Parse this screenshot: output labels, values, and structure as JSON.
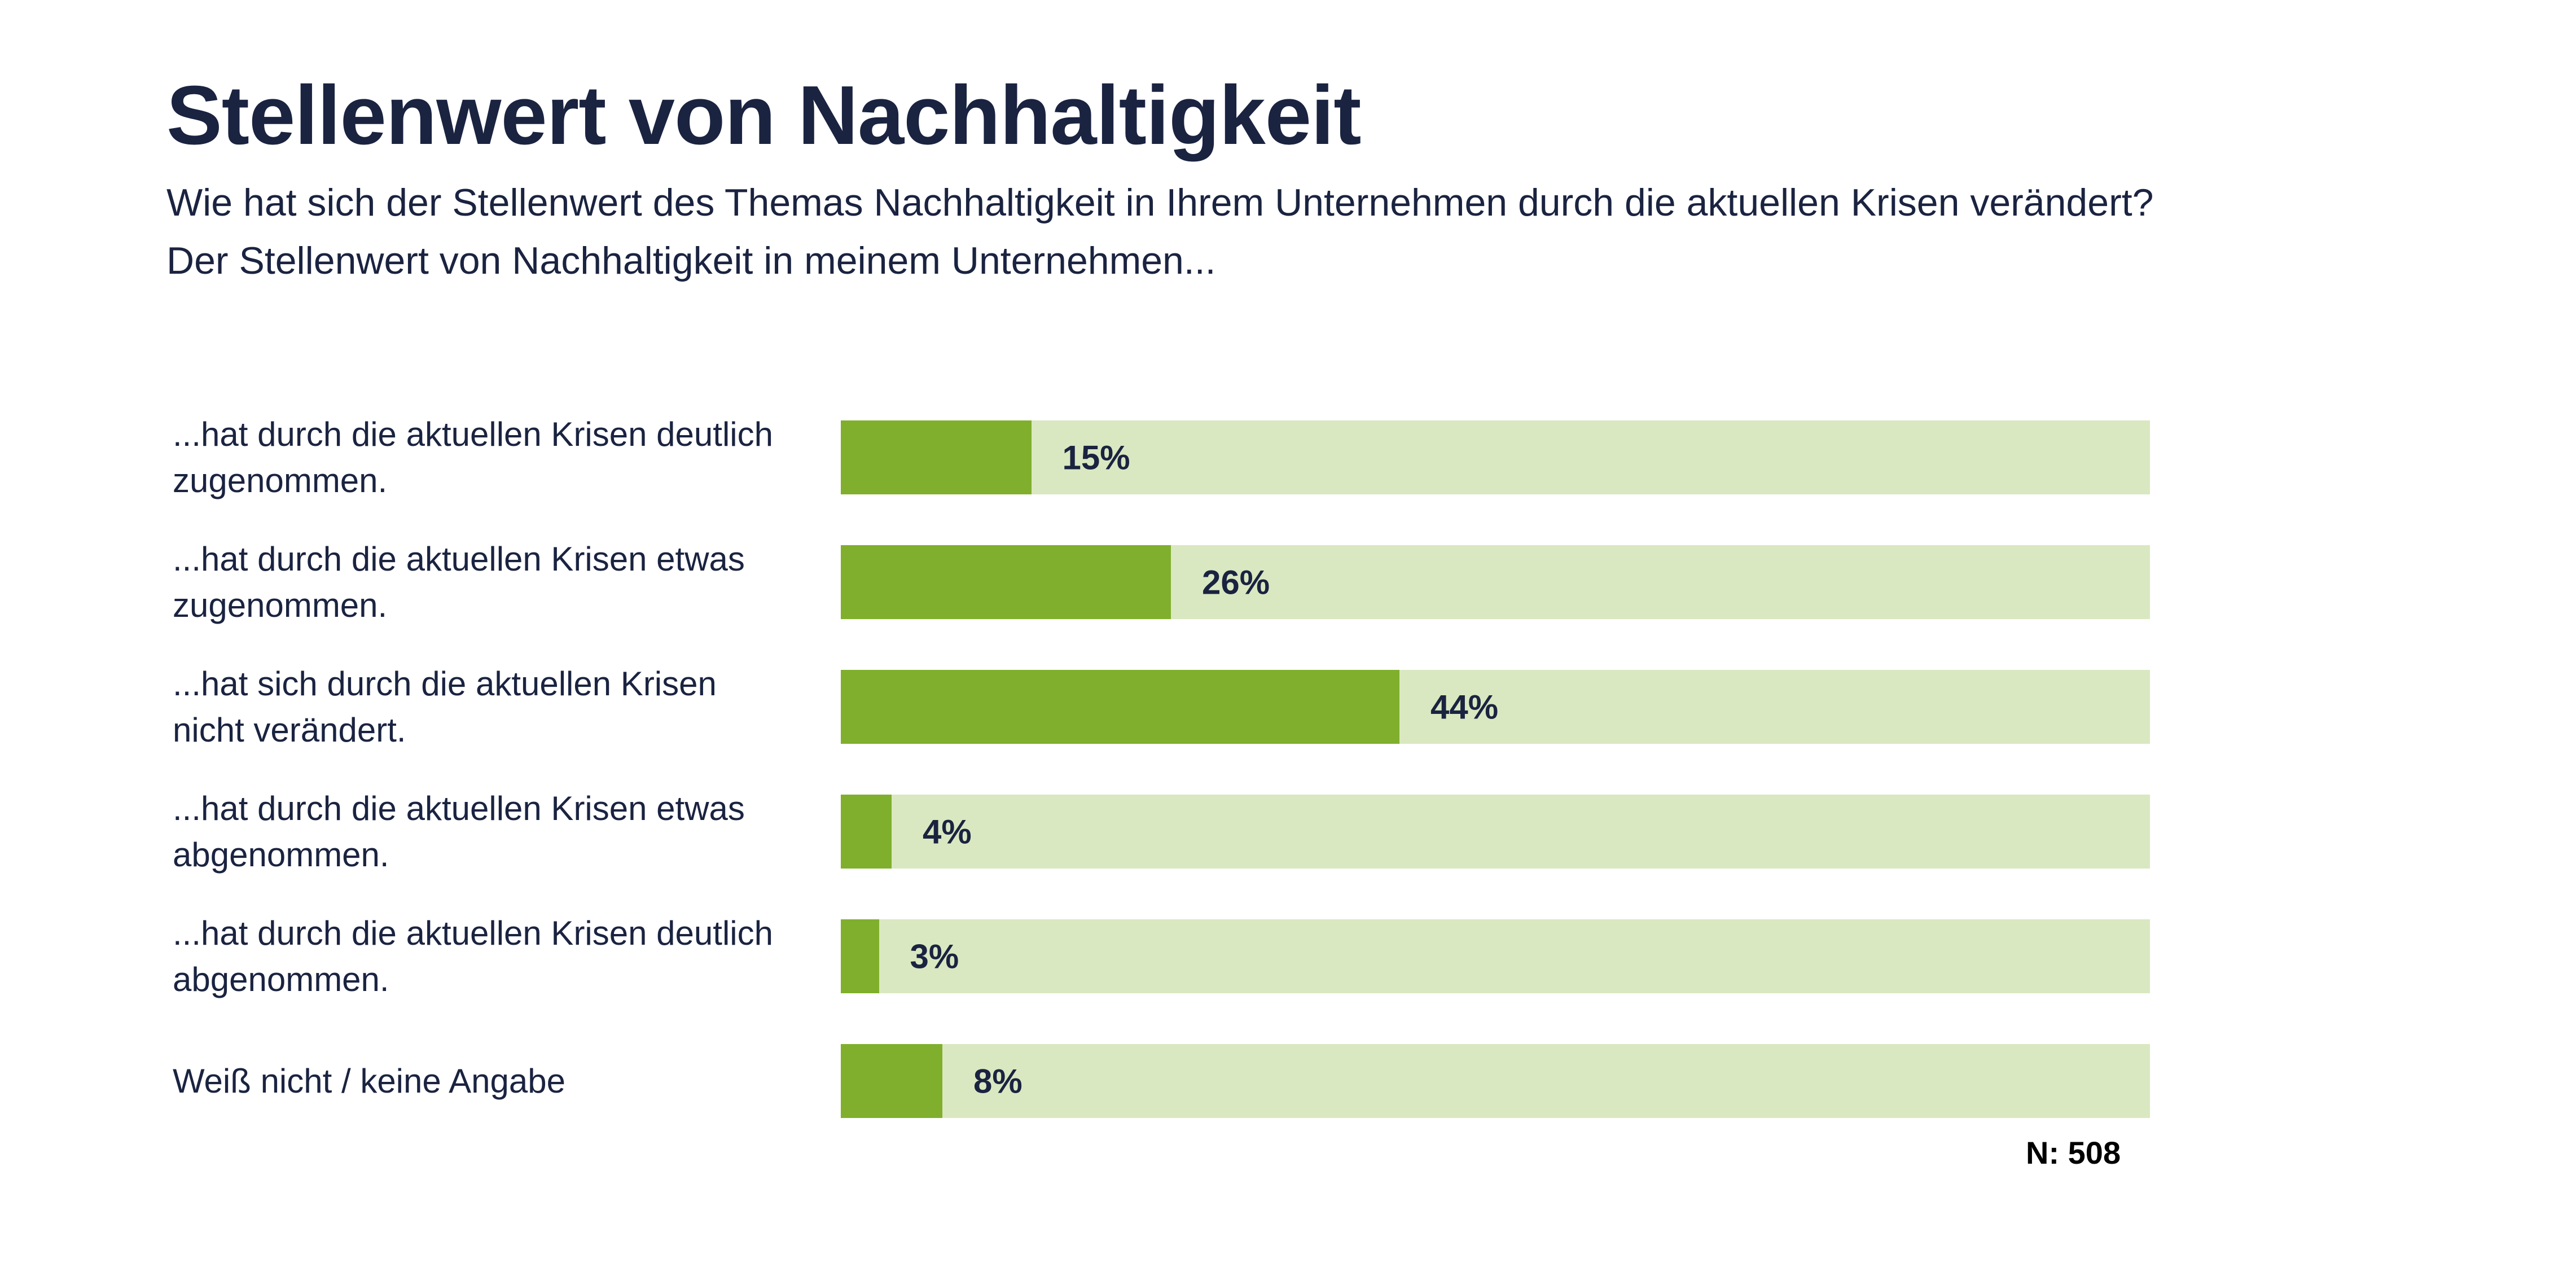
{
  "title": "Stellenwert von Nachhaltigkeit",
  "subtitle_line1": "Wie hat sich der Stellenwert des Themas Nachhaltigkeit in Ihrem Unternehmen durch die aktuellen Krisen verändert?",
  "subtitle_line2": "Der Stellenwert von Nachhaltigkeit in meinem Unternehmen...",
  "sample_size": "N: 508",
  "colors": {
    "fill": "#80af2d",
    "track": "#d9e8c0",
    "text": "#1a2340"
  },
  "chart_data": {
    "type": "bar",
    "orientation": "horizontal",
    "title": "Stellenwert von Nachhaltigkeit",
    "categories": [
      "...hat durch die aktuellen Krisen deutlich zugenommen.",
      "...hat durch die aktuellen Krisen etwas zugenommen.",
      "...hat sich durch die aktuellen Krisen nicht verändert.",
      "...hat durch die aktuellen Krisen etwas abgenommen.",
      "...hat durch die aktuellen Krisen deutlich abgenommen.",
      "Weiß nicht / keine Angabe"
    ],
    "values": [
      15,
      26,
      44,
      4,
      3,
      8
    ],
    "value_labels": [
      "15%",
      "26%",
      "44%",
      "4%",
      "3%",
      "8%"
    ],
    "unit": "%",
    "grid": false
  }
}
